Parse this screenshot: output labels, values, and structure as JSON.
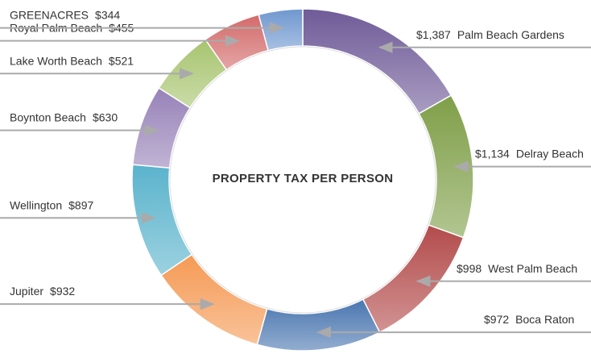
{
  "chart_data": {
    "type": "donut",
    "title": "PROPERTY TAX PER PERSON",
    "categories": [
      "Palm Beach Gardens",
      "Delray Beach",
      "West Palm Beach",
      "Boca Raton",
      "Jupiter",
      "Wellington",
      "Boynton Beach",
      "Lake Worth Beach",
      "Royal Palm Beach",
      "GREENACRES"
    ],
    "values": [
      1387,
      1134,
      998,
      972,
      932,
      897,
      630,
      521,
      455,
      344
    ],
    "value_labels": [
      "$1,387",
      "$1,134",
      "$998",
      "$972",
      "$932",
      "$897",
      "$630",
      "$521",
      "$455",
      "$344"
    ],
    "colors": [
      "#6f5b98",
      "#7f9f48",
      "#b34b4b",
      "#4a76b0",
      "#f59a55",
      "#5ab3cc",
      "#9782b8",
      "#a7c46f",
      "#d36a6a",
      "#6f97cf"
    ]
  }
}
